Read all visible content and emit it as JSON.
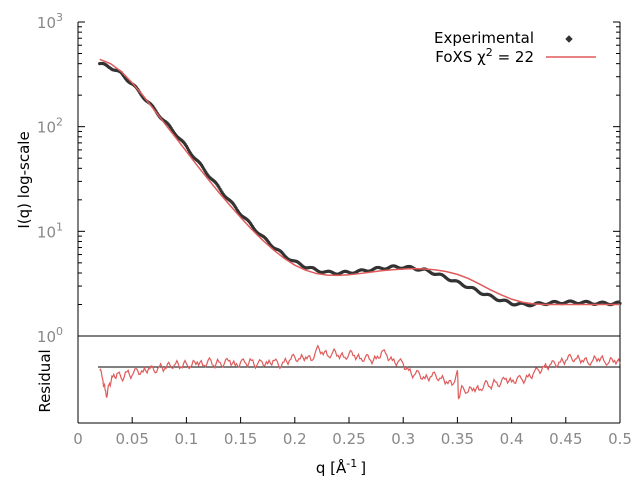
{
  "chart_data": [
    {
      "type": "scatter",
      "ylabel": "I(q) log-scale",
      "xlim": [
        0,
        0.5
      ],
      "ylim": [
        1,
        1000
      ],
      "yscale": "log",
      "y_ticks": [
        {
          "base": "10",
          "exp": "0"
        },
        {
          "base": "10",
          "exp": "1"
        },
        {
          "base": "10",
          "exp": "2"
        },
        {
          "base": "10",
          "exp": "3"
        }
      ],
      "legend_position": "top-right",
      "legend": {
        "experimental_label": "Experimental",
        "fit_label_prefix": "FoXS χ",
        "fit_label_exp": "2",
        "fit_label_suffix": " = 22"
      },
      "series": [
        {
          "name": "Experimental",
          "color": "#333333",
          "points": [
            [
              0.02,
              400
            ],
            [
              0.03,
              370
            ],
            [
              0.04,
              320
            ],
            [
              0.05,
              255
            ],
            [
              0.06,
              195
            ],
            [
              0.07,
              148
            ],
            [
              0.08,
              112
            ],
            [
              0.09,
              86
            ],
            [
              0.1,
              64
            ],
            [
              0.11,
              47
            ],
            [
              0.12,
              35
            ],
            [
              0.13,
              26
            ],
            [
              0.14,
              19.5
            ],
            [
              0.15,
              14.8
            ],
            [
              0.16,
              11.4
            ],
            [
              0.17,
              8.9
            ],
            [
              0.18,
              7.2
            ],
            [
              0.19,
              5.9
            ],
            [
              0.2,
              5.1
            ],
            [
              0.21,
              4.6
            ],
            [
              0.22,
              4.25
            ],
            [
              0.23,
              4.05
            ],
            [
              0.24,
              4.0
            ],
            [
              0.25,
              4.05
            ],
            [
              0.26,
              4.15
            ],
            [
              0.27,
              4.3
            ],
            [
              0.28,
              4.45
            ],
            [
              0.29,
              4.55
            ],
            [
              0.3,
              4.55
            ],
            [
              0.31,
              4.45
            ],
            [
              0.32,
              4.25
            ],
            [
              0.33,
              3.95
            ],
            [
              0.34,
              3.6
            ],
            [
              0.35,
              3.25
            ],
            [
              0.36,
              2.95
            ],
            [
              0.37,
              2.65
            ],
            [
              0.38,
              2.4
            ],
            [
              0.39,
              2.2
            ],
            [
              0.4,
              2.05
            ],
            [
              0.41,
              2.0
            ],
            [
              0.42,
              2.0
            ],
            [
              0.43,
              2.05
            ],
            [
              0.44,
              2.08
            ],
            [
              0.45,
              2.1
            ],
            [
              0.46,
              2.1
            ],
            [
              0.47,
              2.08
            ],
            [
              0.48,
              2.05
            ],
            [
              0.49,
              2.05
            ],
            [
              0.5,
              2.05
            ]
          ]
        },
        {
          "name": "FoXS",
          "color": "#e05a5a",
          "points": [
            [
              0.02,
              440
            ],
            [
              0.03,
              400
            ],
            [
              0.04,
              335
            ],
            [
              0.05,
              262
            ],
            [
              0.06,
              198
            ],
            [
              0.07,
              146
            ],
            [
              0.08,
              107
            ],
            [
              0.09,
              79
            ],
            [
              0.1,
              58
            ],
            [
              0.11,
              42.5
            ],
            [
              0.12,
              31.5
            ],
            [
              0.13,
              23.5
            ],
            [
              0.14,
              17.8
            ],
            [
              0.15,
              13.6
            ],
            [
              0.16,
              10.5
            ],
            [
              0.17,
              8.3
            ],
            [
              0.18,
              6.7
            ],
            [
              0.19,
              5.55
            ],
            [
              0.2,
              4.75
            ],
            [
              0.21,
              4.25
            ],
            [
              0.22,
              3.95
            ],
            [
              0.23,
              3.82
            ],
            [
              0.24,
              3.8
            ],
            [
              0.25,
              3.85
            ],
            [
              0.26,
              3.95
            ],
            [
              0.27,
              4.08
            ],
            [
              0.28,
              4.2
            ],
            [
              0.29,
              4.3
            ],
            [
              0.3,
              4.37
            ],
            [
              0.31,
              4.4
            ],
            [
              0.32,
              4.37
            ],
            [
              0.33,
              4.28
            ],
            [
              0.34,
              4.12
            ],
            [
              0.35,
              3.88
            ],
            [
              0.36,
              3.55
            ],
            [
              0.37,
              3.15
            ],
            [
              0.38,
              2.78
            ],
            [
              0.39,
              2.48
            ],
            [
              0.4,
              2.25
            ],
            [
              0.41,
              2.1
            ],
            [
              0.42,
              2.03
            ],
            [
              0.43,
              2.0
            ],
            [
              0.44,
              2.0
            ],
            [
              0.45,
              2.0
            ],
            [
              0.46,
              2.0
            ],
            [
              0.47,
              2.0
            ],
            [
              0.48,
              2.0
            ],
            [
              0.49,
              2.0
            ],
            [
              0.5,
              2.0
            ]
          ]
        }
      ]
    },
    {
      "type": "line",
      "xlabel_base": "q [Å",
      "xlabel_exp": "-1",
      "xlabel_end": "]",
      "ylabel": "Residual",
      "xlim": [
        0,
        0.5
      ],
      "ylim": [
        -1,
        1
      ],
      "x_tick_labels": [
        "0",
        "0.05",
        "0.1",
        "0.15",
        "0.2",
        "0.25",
        "0.3",
        "0.35",
        "0.4",
        "0.45",
        "0.5"
      ],
      "x_ticks": [
        0,
        0.05,
        0.1,
        0.15,
        0.2,
        0.25,
        0.3,
        0.35,
        0.4,
        0.45,
        0.5
      ],
      "reference_line": 0,
      "series": [
        {
          "name": "Residual",
          "color": "#e05a5a",
          "points": [
            [
              0.02,
              -0.1
            ],
            [
              0.023,
              -0.4
            ],
            [
              0.025,
              -0.7
            ],
            [
              0.027,
              -0.85
            ],
            [
              0.029,
              -0.5
            ],
            [
              0.032,
              -0.3
            ],
            [
              0.036,
              -0.2
            ],
            [
              0.04,
              -0.35
            ],
            [
              0.045,
              -0.15
            ],
            [
              0.05,
              -0.25
            ],
            [
              0.055,
              -0.1
            ],
            [
              0.06,
              -0.15
            ],
            [
              0.065,
              -0.05
            ],
            [
              0.07,
              -0.1
            ],
            [
              0.075,
              0.0
            ],
            [
              0.08,
              -0.05
            ],
            [
              0.085,
              0.05
            ],
            [
              0.09,
              0.1
            ],
            [
              0.095,
              0.0
            ],
            [
              0.1,
              0.1
            ],
            [
              0.105,
              0.05
            ],
            [
              0.11,
              0.15
            ],
            [
              0.115,
              0.05
            ],
            [
              0.12,
              0.2
            ],
            [
              0.125,
              0.05
            ],
            [
              0.13,
              0.15
            ],
            [
              0.135,
              0.1
            ],
            [
              0.14,
              0.2
            ],
            [
              0.145,
              0.05
            ],
            [
              0.15,
              0.15
            ],
            [
              0.155,
              0.1
            ],
            [
              0.16,
              0.2
            ],
            [
              0.165,
              0.05
            ],
            [
              0.17,
              0.15
            ],
            [
              0.175,
              0.1
            ],
            [
              0.18,
              0.2
            ],
            [
              0.185,
              0.05
            ],
            [
              0.19,
              0.15
            ],
            [
              0.195,
              0.2
            ],
            [
              0.2,
              0.3
            ],
            [
              0.205,
              0.25
            ],
            [
              0.21,
              0.3
            ],
            [
              0.215,
              0.2
            ],
            [
              0.22,
              0.55
            ],
            [
              0.225,
              0.45
            ],
            [
              0.23,
              0.35
            ],
            [
              0.235,
              0.45
            ],
            [
              0.24,
              0.35
            ],
            [
              0.245,
              0.3
            ],
            [
              0.25,
              0.4
            ],
            [
              0.255,
              0.35
            ],
            [
              0.26,
              0.25
            ],
            [
              0.265,
              0.3
            ],
            [
              0.27,
              0.2
            ],
            [
              0.275,
              0.25
            ],
            [
              0.28,
              0.45
            ],
            [
              0.285,
              0.35
            ],
            [
              0.29,
              0.2
            ],
            [
              0.295,
              0.15
            ],
            [
              0.3,
              0.1
            ],
            [
              0.305,
              -0.1
            ],
            [
              0.31,
              -0.25
            ],
            [
              0.315,
              -0.2
            ],
            [
              0.32,
              -0.35
            ],
            [
              0.325,
              -0.3
            ],
            [
              0.33,
              -0.25
            ],
            [
              0.335,
              -0.35
            ],
            [
              0.34,
              -0.45
            ],
            [
              0.345,
              -0.55
            ],
            [
              0.35,
              -0.1
            ],
            [
              0.351,
              -0.95
            ],
            [
              0.355,
              -0.6
            ],
            [
              0.36,
              -0.75
            ],
            [
              0.365,
              -0.65
            ],
            [
              0.37,
              -0.7
            ],
            [
              0.375,
              -0.5
            ],
            [
              0.38,
              -0.6
            ],
            [
              0.385,
              -0.45
            ],
            [
              0.39,
              -0.5
            ],
            [
              0.395,
              -0.35
            ],
            [
              0.4,
              -0.45
            ],
            [
              0.405,
              -0.35
            ],
            [
              0.41,
              -0.4
            ],
            [
              0.415,
              -0.3
            ],
            [
              0.42,
              -0.2
            ],
            [
              0.425,
              -0.1
            ],
            [
              0.43,
              0.0
            ],
            [
              0.435,
              0.05
            ],
            [
              0.44,
              0.1
            ],
            [
              0.445,
              0.15
            ],
            [
              0.45,
              0.2
            ],
            [
              0.455,
              0.3
            ],
            [
              0.46,
              0.25
            ],
            [
              0.465,
              0.2
            ],
            [
              0.47,
              0.15
            ],
            [
              0.475,
              0.2
            ],
            [
              0.48,
              0.25
            ],
            [
              0.485,
              0.2
            ],
            [
              0.49,
              0.15
            ],
            [
              0.495,
              0.2
            ],
            [
              0.5,
              0.1
            ]
          ]
        }
      ]
    }
  ]
}
